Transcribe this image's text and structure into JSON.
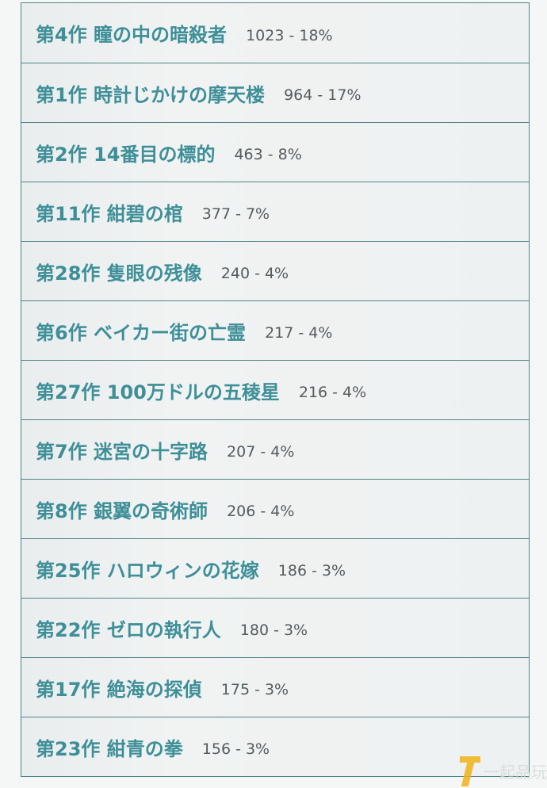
{
  "ranking": {
    "items": [
      {
        "title": "第4作 瞳の中の暗殺者",
        "stat": "1023 - 18%"
      },
      {
        "title": "第1作 時計じかけの摩天楼",
        "stat": "964 - 17%"
      },
      {
        "title": "第2作 14番目の標的",
        "stat": "463 - 8%"
      },
      {
        "title": "第11作 紺碧の棺",
        "stat": "377 - 7%"
      },
      {
        "title": "第28作 隻眼の残像",
        "stat": "240 - 4%"
      },
      {
        "title": "第6作 ベイカー街の亡霊",
        "stat": "217 - 4%"
      },
      {
        "title": "第27作 100万ドルの五稜星",
        "stat": "216 - 4%"
      },
      {
        "title": "第7作 迷宮の十字路",
        "stat": "207 - 4%"
      },
      {
        "title": "第8作 銀翼の奇術師",
        "stat": "206 - 4%"
      },
      {
        "title": "第25作 ハロウィンの花嫁",
        "stat": "186 - 3%"
      },
      {
        "title": "第22作 ゼロの執行人",
        "stat": "180 - 3%"
      },
      {
        "title": "第17作 絶海の探偵",
        "stat": "175 - 3%"
      },
      {
        "title": "第23作 紺青の拳",
        "stat": "156 - 3%"
      }
    ]
  },
  "watermark": {
    "text": "一起品玩",
    "logo_color": "#f2b21b"
  },
  "colors": {
    "title": "#3e8f98",
    "stat": "#555c5e",
    "border": "#4f8388"
  }
}
